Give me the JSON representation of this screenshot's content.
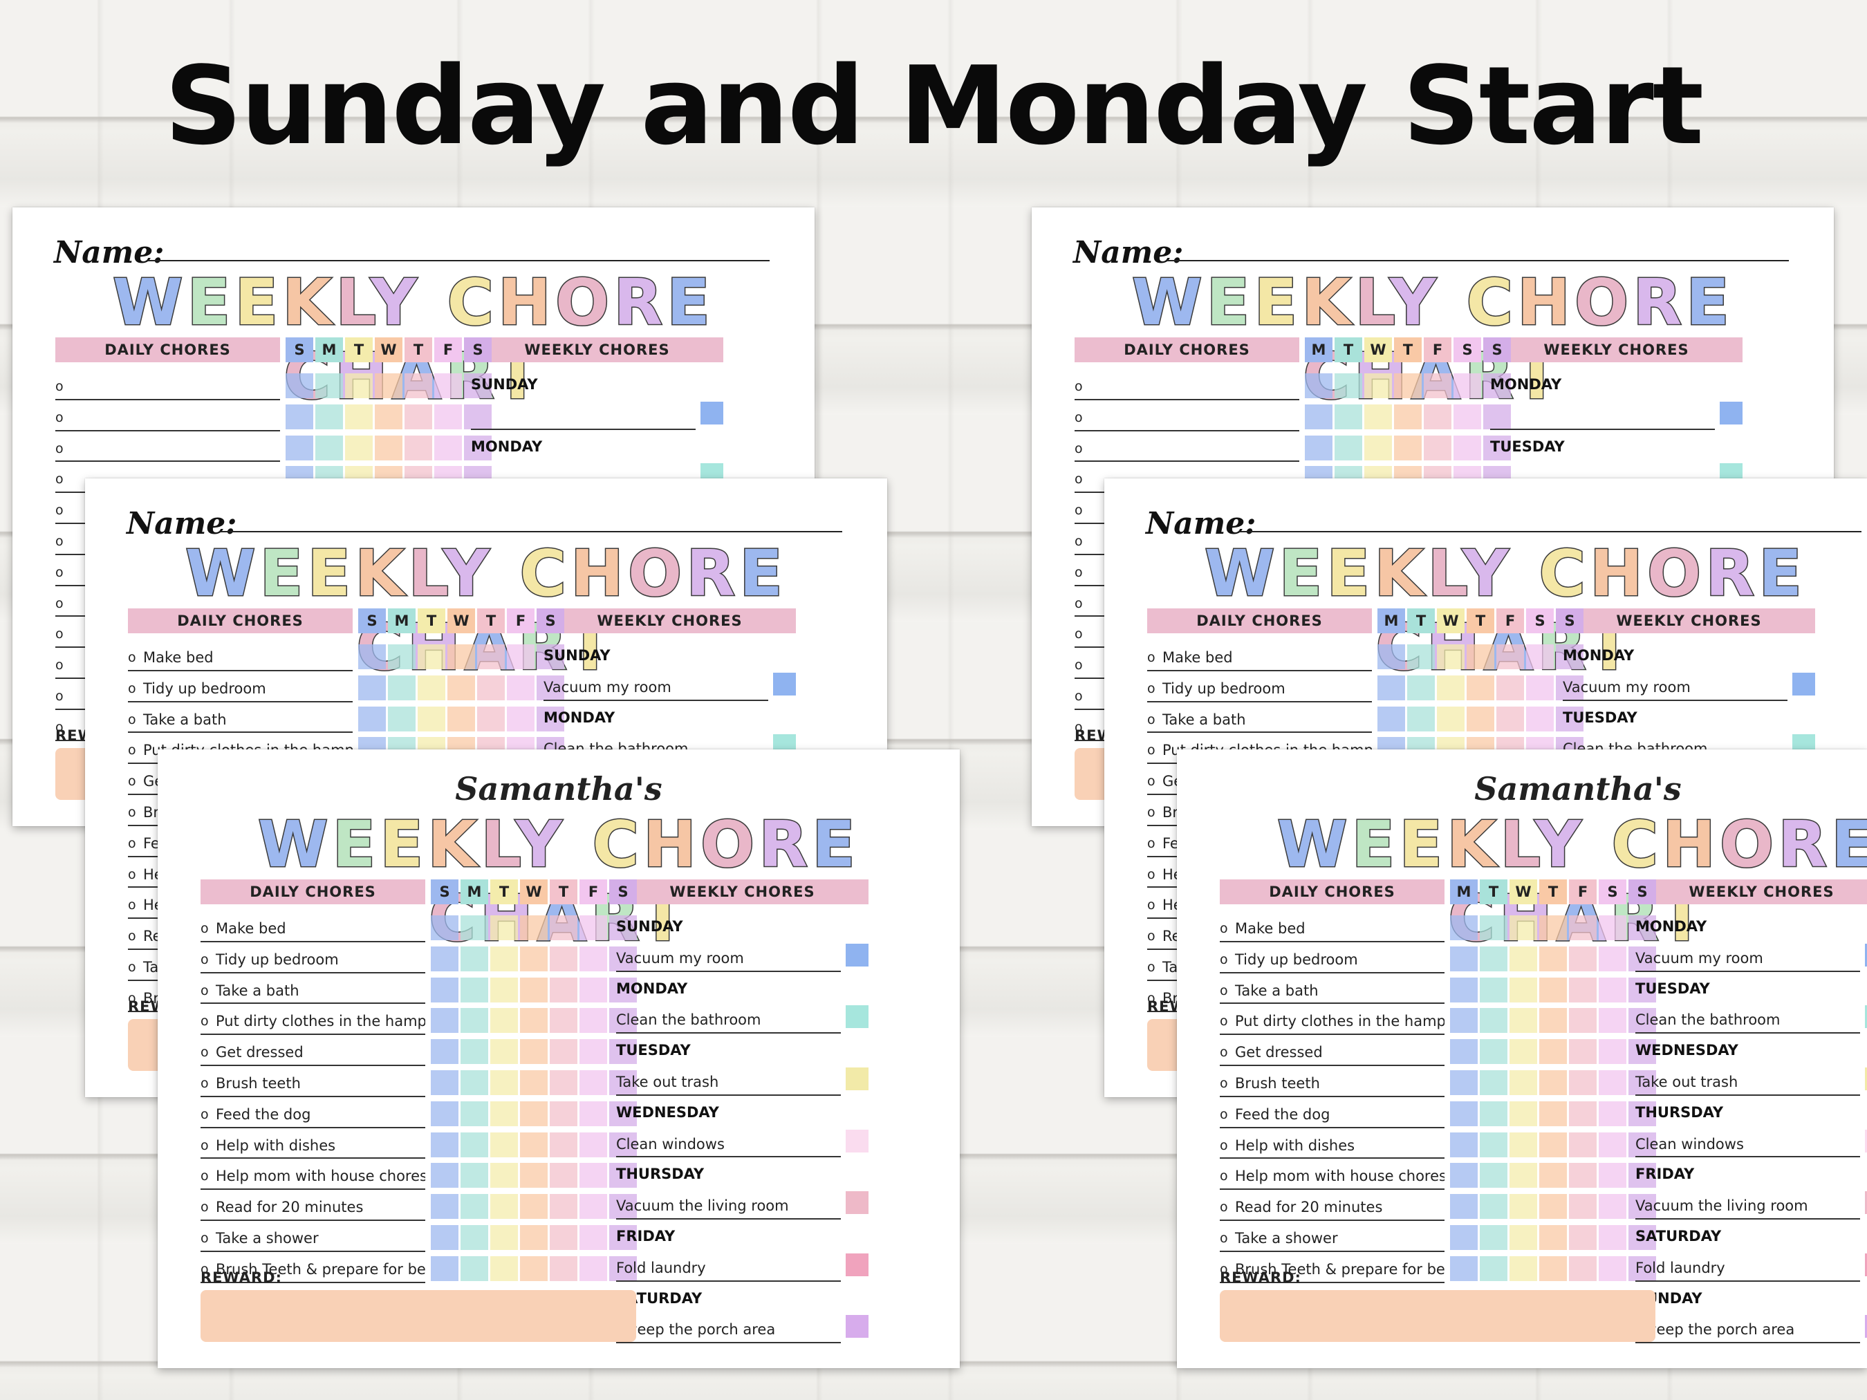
{
  "headline": "Sunday and Monday Start",
  "name_label": "Name:",
  "owner_label": "Samantha's",
  "title_words": [
    "WEEKLY",
    "CHORE",
    "CHART"
  ],
  "daily_header": "DAILY CHORES",
  "weekly_header": "WEEKLY CHORES",
  "reward_label": "REWARD:",
  "sunday_days": [
    "S",
    "M",
    "T",
    "W",
    "T",
    "F",
    "S"
  ],
  "monday_days": [
    "M",
    "T",
    "W",
    "T",
    "F",
    "S",
    "S"
  ],
  "chores": [
    "Make bed",
    "Tidy up bedroom",
    "Take a bath",
    "Put dirty clothes in the hamper",
    "Get dressed",
    "Brush teeth",
    "Feed the dog",
    "Help with dishes",
    "Help mom with house chores",
    "Read for 20 minutes",
    "Take a shower",
    "Brush Teeth & prepare for bed"
  ],
  "weekly_tasks": [
    "Vacuum my room",
    "Clean the bathroom",
    "Take out trash",
    "Clean windows",
    "Vacuum the living room",
    "Fold laundry",
    "Sweep the porch area"
  ],
  "sunday_week": [
    "SUNDAY",
    "MONDAY",
    "TUESDAY",
    "WEDNESDAY",
    "THURSDAY",
    "FRIDAY",
    "SATURDAY"
  ],
  "monday_week": [
    "MONDAY",
    "TUESDAY",
    "WEDNESDAY",
    "THURSDAY",
    "FRIDAY",
    "SATURDAY",
    "SUNDAY"
  ],
  "day_colors": [
    "#9db8ef",
    "#a9e2da",
    "#f4ecac",
    "#f9c9a6",
    "#f3c2cc",
    "#f2c6ef",
    "#d4aee8"
  ],
  "weekly_square_colors": [
    "#8fb3f0",
    "#a6e6dd",
    "#f2eaa8",
    "#fadcef",
    "#eeb9c8",
    "#f0a3bd",
    "#d7acec"
  ]
}
